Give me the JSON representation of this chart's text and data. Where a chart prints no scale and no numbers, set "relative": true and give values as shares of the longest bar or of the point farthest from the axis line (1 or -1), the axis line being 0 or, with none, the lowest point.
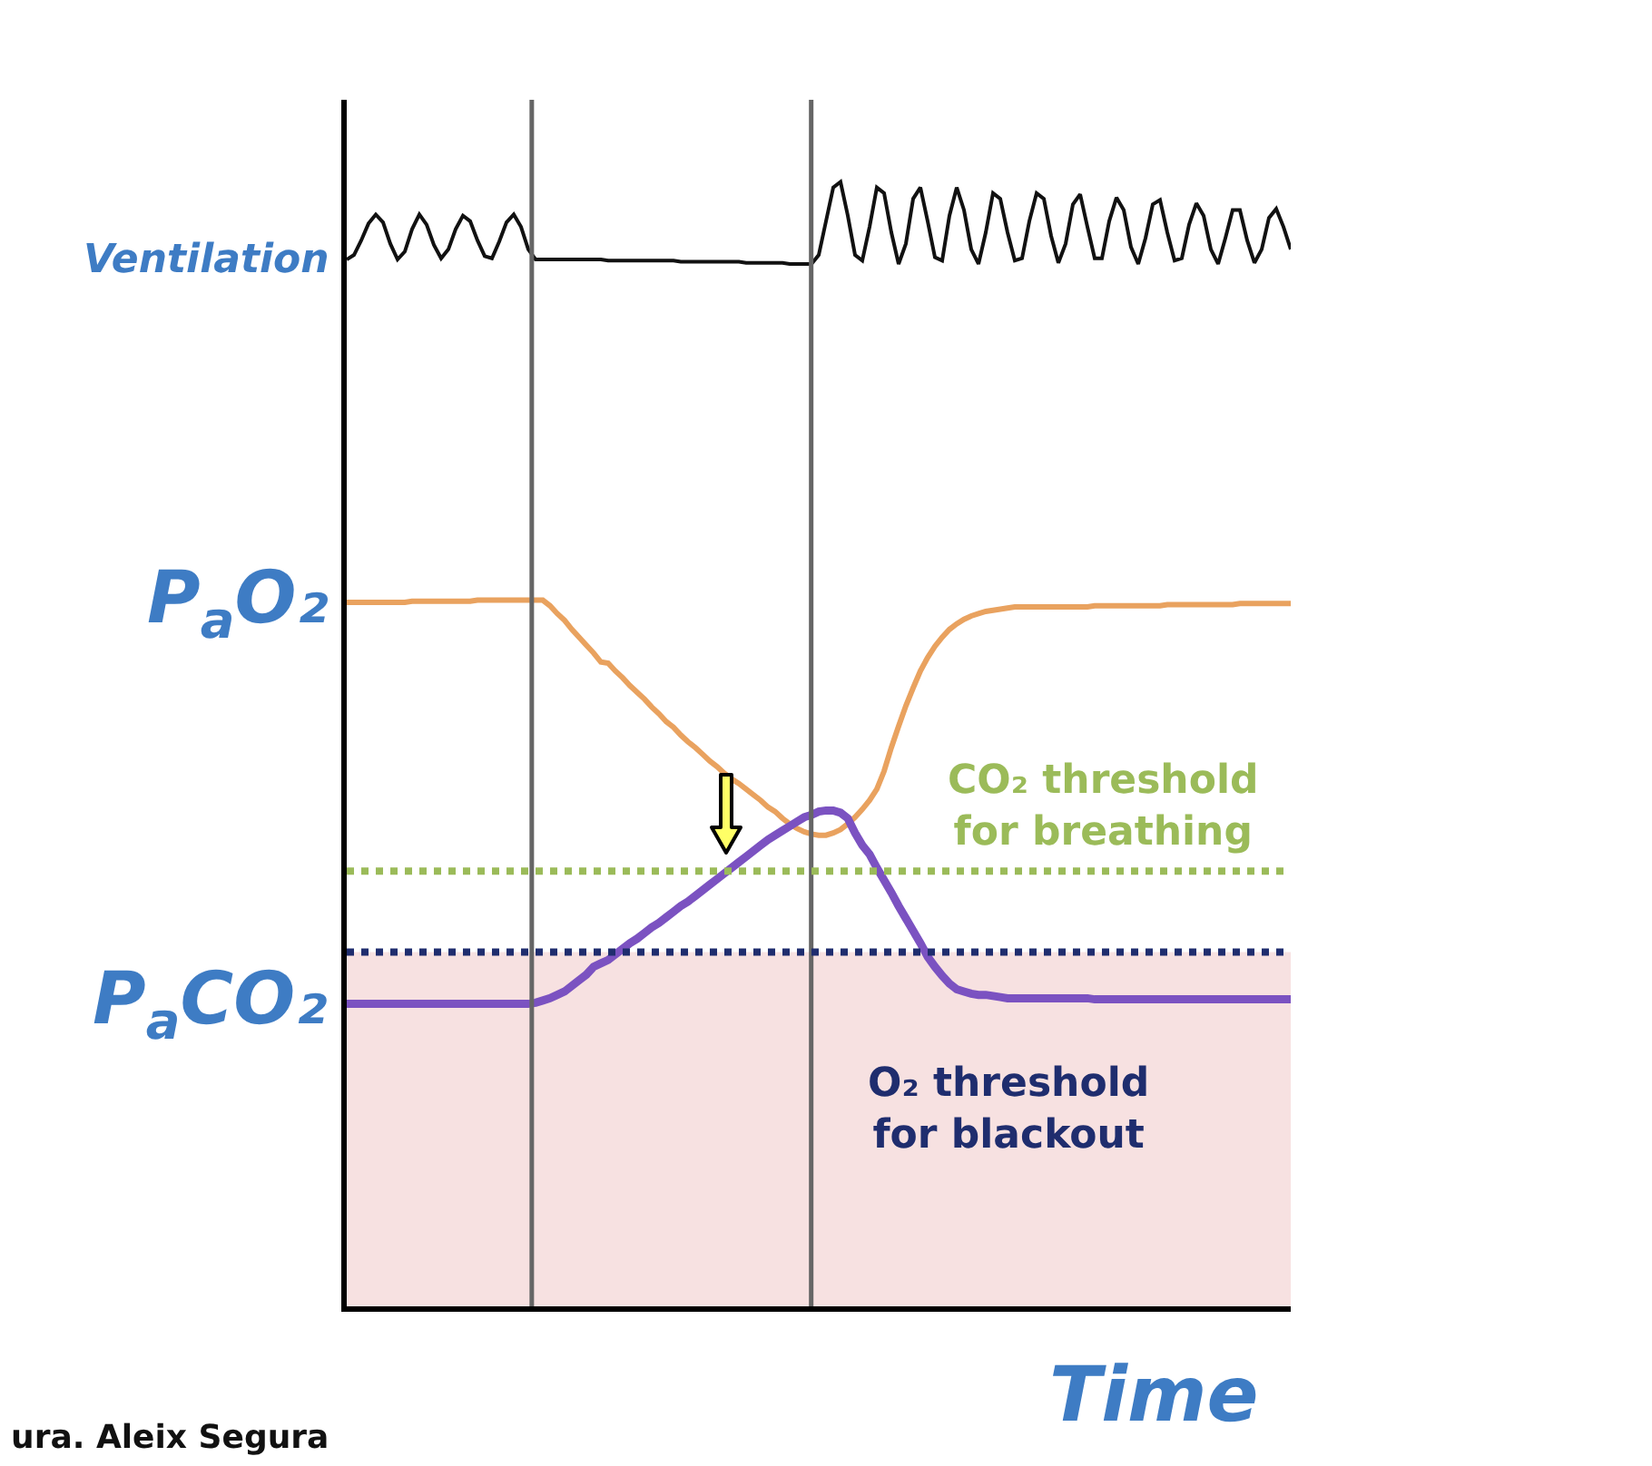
{
  "chart_data": {
    "type": "line",
    "relative": true,
    "xlabel": "Time",
    "legend": false,
    "marker": "none",
    "line_style": "solid",
    "categories": [
      null,
      null,
      null,
      null,
      null,
      null,
      null,
      null,
      null,
      null,
      null,
      null,
      null,
      null,
      null,
      null,
      null,
      null,
      null,
      null,
      null,
      null,
      null,
      null,
      null,
      null,
      null,
      null,
      null,
      null,
      null,
      null,
      null,
      null,
      null,
      null,
      null,
      null,
      null,
      null,
      null,
      null,
      null,
      null,
      null,
      null,
      null,
      null,
      null,
      null,
      null,
      null,
      null,
      null,
      null,
      null,
      null,
      null,
      null,
      null,
      null,
      null,
      null,
      null,
      null,
      null,
      null,
      null,
      null,
      null,
      null,
      null,
      null,
      null,
      null,
      null,
      null,
      null,
      null,
      null,
      null,
      null,
      null,
      null,
      null,
      null,
      null,
      null,
      null,
      null,
      null,
      null,
      null,
      null,
      null,
      null,
      null,
      null,
      null,
      null,
      null,
      null,
      null,
      null,
      null,
      null,
      null,
      null,
      null,
      null,
      null,
      null,
      null,
      null,
      null,
      null,
      null,
      null,
      null,
      null,
      null,
      null,
      null,
      null,
      null,
      null,
      null,
      null,
      null,
      null,
      null
    ],
    "series": [
      {
        "name": "Ventilation",
        "color": "#111111",
        "values": [
          0.931,
          0.935,
          0.948,
          0.963,
          0.971,
          0.964,
          0.945,
          0.931,
          0.938,
          0.958,
          0.971,
          0.962,
          0.944,
          0.932,
          0.94,
          0.958,
          0.97,
          0.965,
          0.948,
          0.934,
          0.932,
          0.947,
          0.964,
          0.971,
          0.96,
          0.94,
          0.931,
          0.931,
          0.931,
          0.931,
          0.931,
          0.931,
          0.931,
          0.931,
          0.931,
          0.931,
          0.93,
          0.93,
          0.93,
          0.93,
          0.93,
          0.93,
          0.93,
          0.93,
          0.93,
          0.93,
          0.929,
          0.929,
          0.929,
          0.929,
          0.929,
          0.929,
          0.929,
          0.929,
          0.929,
          0.928,
          0.928,
          0.928,
          0.928,
          0.928,
          0.928,
          0.927,
          0.927,
          0.927,
          0.927,
          0.935,
          0.965,
          0.995,
          1,
          0.97,
          0.935,
          0.93,
          0.96,
          0.995,
          0.99,
          0.955,
          0.927,
          0.945,
          0.985,
          0.995,
          0.965,
          0.933,
          0.93,
          0.97,
          0.995,
          0.975,
          0.94,
          0.927,
          0.955,
          0.99,
          0.985,
          0.955,
          0.93,
          0.932,
          0.965,
          0.99,
          0.985,
          0.952,
          0.928,
          0.945,
          0.98,
          0.989,
          0.96,
          0.932,
          0.932,
          0.965,
          0.986,
          0.975,
          0.942,
          0.927,
          0.95,
          0.98,
          0.984,
          0.955,
          0.93,
          0.932,
          0.962,
          0.981,
          0.97,
          0.94,
          0.927,
          0.95,
          0.975,
          0.975,
          0.948,
          0.928,
          0.94,
          0.968,
          0.976,
          0.96,
          0.94
        ]
      },
      {
        "name": "P$_{a}$O₂",
        "color": "#e9a25f",
        "values": [
          0.626,
          0.626,
          0.626,
          0.626,
          0.626,
          0.626,
          0.626,
          0.626,
          0.626,
          0.627,
          0.627,
          0.627,
          0.627,
          0.627,
          0.627,
          0.627,
          0.627,
          0.627,
          0.628,
          0.628,
          0.628,
          0.628,
          0.628,
          0.628,
          0.628,
          0.628,
          0.628,
          0.628,
          0.623,
          0.616,
          0.61,
          0.602,
          0.595,
          0.588,
          0.581,
          0.573,
          0.572,
          0.565,
          0.559,
          0.552,
          0.546,
          0.54,
          0.533,
          0.527,
          0.52,
          0.515,
          0.508,
          0.502,
          0.497,
          0.491,
          0.485,
          0.48,
          0.474,
          0.469,
          0.465,
          0.46,
          0.455,
          0.45,
          0.444,
          0.44,
          0.434,
          0.429,
          0.425,
          0.422,
          0.42,
          0.419,
          0.419,
          0.421,
          0.424,
          0.429,
          0.435,
          0.442,
          0.45,
          0.46,
          0.476,
          0.497,
          0.516,
          0.534,
          0.55,
          0.565,
          0.577,
          0.587,
          0.595,
          0.602,
          0.607,
          0.611,
          0.614,
          0.616,
          0.618,
          0.619,
          0.62,
          0.621,
          0.622,
          0.622,
          0.622,
          0.622,
          0.622,
          0.622,
          0.622,
          0.622,
          0.622,
          0.622,
          0.622,
          0.623,
          0.623,
          0.623,
          0.623,
          0.623,
          0.623,
          0.623,
          0.623,
          0.623,
          0.623,
          0.624,
          0.624,
          0.624,
          0.624,
          0.624,
          0.624,
          0.624,
          0.624,
          0.624,
          0.624,
          0.625,
          0.625,
          0.625,
          0.625,
          0.625,
          0.625,
          0.625,
          0.625
        ]
      },
      {
        "name": "P$_{a}$CO₂",
        "color": "#7b52c1",
        "values": [
          0.269,
          0.269,
          0.269,
          0.269,
          0.269,
          0.269,
          0.269,
          0.269,
          0.269,
          0.269,
          0.269,
          0.269,
          0.269,
          0.269,
          0.269,
          0.269,
          0.269,
          0.269,
          0.269,
          0.269,
          0.269,
          0.269,
          0.269,
          0.269,
          0.269,
          0.269,
          0.27,
          0.272,
          0.274,
          0.277,
          0.28,
          0.285,
          0.29,
          0.295,
          0.302,
          0.305,
          0.308,
          0.313,
          0.318,
          0.323,
          0.327,
          0.332,
          0.337,
          0.341,
          0.346,
          0.351,
          0.356,
          0.36,
          0.365,
          0.37,
          0.375,
          0.38,
          0.385,
          0.39,
          0.395,
          0.4,
          0.405,
          0.41,
          0.415,
          0.419,
          0.423,
          0.427,
          0.431,
          0.435,
          0.437,
          0.44,
          0.441,
          0.441,
          0.439,
          0.434,
          0.421,
          0.41,
          0.402,
          0.39,
          0.379,
          0.368,
          0.356,
          0.345,
          0.334,
          0.323,
          0.311,
          0.302,
          0.294,
          0.287,
          0.282,
          0.28,
          0.278,
          0.277,
          0.277,
          0.276,
          0.275,
          0.274,
          0.274,
          0.274,
          0.274,
          0.274,
          0.274,
          0.274,
          0.274,
          0.274,
          0.274,
          0.274,
          0.274,
          0.273,
          0.273,
          0.273,
          0.273,
          0.273,
          0.273,
          0.273,
          0.273,
          0.273,
          0.273,
          0.273,
          0.273,
          0.273,
          0.273,
          0.273,
          0.273,
          0.273,
          0.273,
          0.273,
          0.273,
          0.273,
          0.273,
          0.273,
          0.273,
          0.273,
          0.273,
          0.273,
          0.273
        ]
      }
    ],
    "ref_lines": [
      {
        "axis": "y",
        "value": 0.387,
        "label": "CO₂ threshold for breathing",
        "color": "#9bbb59",
        "line_style": "dotted"
      },
      {
        "axis": "y",
        "value": 0.315,
        "label": "O₂ threshold for blackout",
        "color": "#1f2d6e",
        "line_style": "dotted"
      }
    ],
    "bands": [
      {
        "axis": "y",
        "from": 0,
        "to": 0.315,
        "color": "#f7e1e1"
      }
    ],
    "annotations": [
      "ura. Aleix Segura"
    ]
  }
}
